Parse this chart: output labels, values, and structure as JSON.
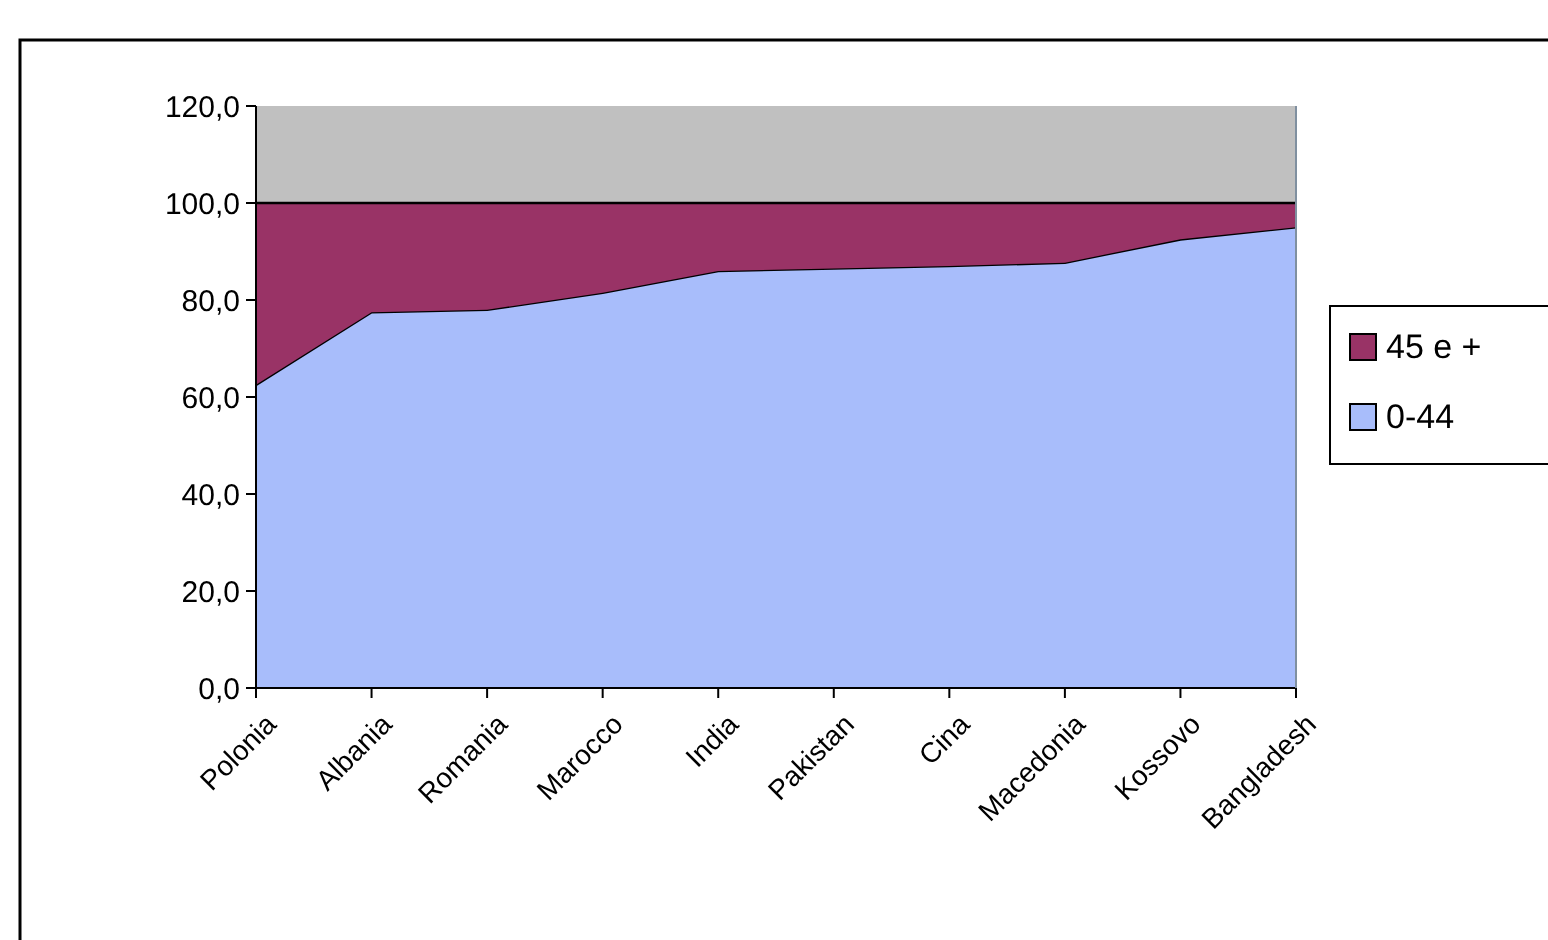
{
  "chart_data": {
    "type": "area",
    "stacked": true,
    "categories": [
      "Polonia",
      "Albania",
      "Romania",
      "Marocco",
      "India",
      "Pakistan",
      "Cina",
      "Macedonia",
      "Kossovo",
      "Bangladesh"
    ],
    "series": [
      {
        "name": "0-44",
        "color": "#a8bdfb",
        "values": [
          62.5,
          77.5,
          78,
          81.5,
          86,
          86.5,
          87,
          87.7,
          92.5,
          95
        ]
      },
      {
        "name": "45 e +",
        "color": "#993366",
        "values": [
          37.5,
          22.5,
          22,
          18.5,
          14,
          13.5,
          13,
          12.3,
          7.5,
          5
        ]
      }
    ],
    "ylim": [
      0,
      120
    ],
    "yticks": [
      {
        "value": 0,
        "label": "0,0"
      },
      {
        "value": 20,
        "label": "20,0"
      },
      {
        "value": 40,
        "label": "40,0"
      },
      {
        "value": 60,
        "label": "60,0"
      },
      {
        "value": 80,
        "label": "80,0"
      },
      {
        "value": 100,
        "label": "100,0"
      },
      {
        "value": 120,
        "label": "120,0"
      }
    ],
    "grid": false,
    "legend": "right"
  }
}
